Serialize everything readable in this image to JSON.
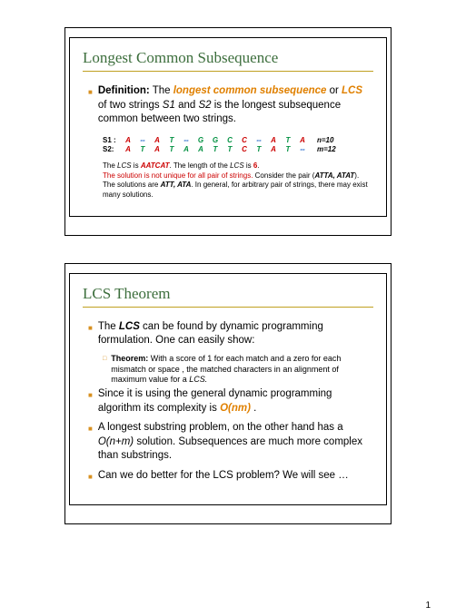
{
  "page_number": "1",
  "colors": {
    "title": "#3c6e3c",
    "accent": "#d89020",
    "orange_text": "#e08000",
    "red": "#cc0000",
    "green": "#009040",
    "blue": "#0050c0",
    "rule": "#c0a020"
  },
  "slide1": {
    "title": "Longest Common Subsequence",
    "def_label": "Definition:",
    "def_p1": " The ",
    "def_term1": "longest  common subsequence",
    "def_or": "  or ",
    "def_term2": "LCS",
    "def_of": " of two strings ",
    "def_s1": "S1",
    "def_and": " and ",
    "def_s2": "S2",
    "def_rest": "  is the longest subsequence common between two strings.",
    "s1_label": "S1 :",
    "s2_label": "S2:",
    "s1_cells": [
      "A",
      "--",
      "A",
      "T",
      "--",
      "G",
      "G",
      "C",
      "C",
      "--",
      "A",
      "T",
      "A"
    ],
    "s2_cells": [
      "A",
      "T",
      "A",
      "T",
      "A",
      "A",
      "T",
      "T",
      "C",
      "T",
      "A",
      "T",
      "--"
    ],
    "s1_end": "n=10",
    "s2_end": "m=12",
    "note_a": "The ",
    "note_lcs": "LCS",
    "note_b": " is ",
    "note_val": "AATCAT",
    "note_c": ". The length of the ",
    "note_d": " is ",
    "note_len": "6",
    "note_e": ".",
    "note2": "The solution is not unique for all pair of strings.",
    "note3a": " Consider the pair (",
    "note3b": "ATTA, ATAT",
    "note3c": ").  The solutions are ",
    "note3d": "ATT, ATA",
    "note3e": ". In general, for arbitrary pair of strings, there may exist many solutions."
  },
  "slide2": {
    "title": "LCS Theorem",
    "b1a": "The ",
    "b1b": "LCS",
    "b1c": "  can be found by dynamic programming formulation. One can easily show:",
    "sub1a": "Theorem:",
    "sub1b": " With a score of 1 for each match and a zero for each mismatch or space , the matched characters in an alignment of maximum value for a ",
    "sub1c": "LCS.",
    "b2a": "Since it is using the general dynamic programming algorithm its complexity is ",
    "b2b": "O(nm)",
    "b2c": " .",
    "b3": "A longest substring problem, on the other hand has a ",
    "b3b": "O(n+m)",
    "b3c": " solution. Subsequences are much more complex than substrings.",
    "b4": "Can we do better for the LCS problem? We will see …"
  }
}
